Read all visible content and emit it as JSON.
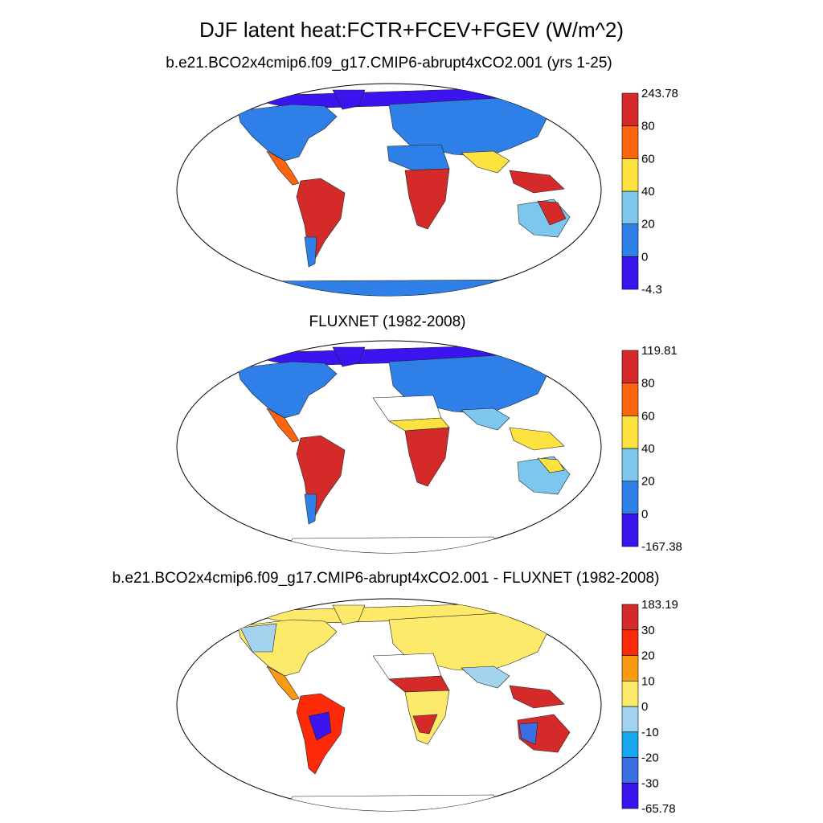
{
  "title": "DJF latent heat:FCTR+FCEV+FGEV (W/m^2)",
  "panels": [
    {
      "subtitle": "b.e21.BCO2x4cmip6.f09_g17.CMIP6-abrupt4xCO2.001 (yrs 1-25)",
      "colorbar": {
        "labels": [
          "243.78",
          "80",
          "60",
          "40",
          "20",
          "0",
          "-4.3"
        ],
        "colors": [
          "#3b14ef",
          "#2f7fe8",
          "#7dc6ee",
          "#fde240",
          "#fc6510",
          "#d42a2a"
        ]
      }
    },
    {
      "subtitle": "FLUXNET (1982-2008)",
      "colorbar": {
        "labels": [
          "119.81",
          "80",
          "60",
          "40",
          "20",
          "0",
          "-167.38"
        ],
        "colors": [
          "#3b14ef",
          "#2f7fe8",
          "#7dc6ee",
          "#fde240",
          "#fc6510",
          "#d42a2a"
        ]
      }
    },
    {
      "subtitle": "b.e21.BCO2x4cmip6.f09_g17.CMIP6-abrupt4xCO2.001 - FLUXNET (1982-2008)",
      "colorbar": {
        "labels": [
          "183.19",
          "30",
          "20",
          "10",
          "0",
          "-10",
          "-20",
          "-30",
          "-65.78"
        ],
        "colors": [
          "#3b14ef",
          "#3b6ee0",
          "#18a8f0",
          "#a3d3ee",
          "#fde96a",
          "#f99a12",
          "#fc2a08",
          "#d42a2a"
        ]
      }
    }
  ]
}
